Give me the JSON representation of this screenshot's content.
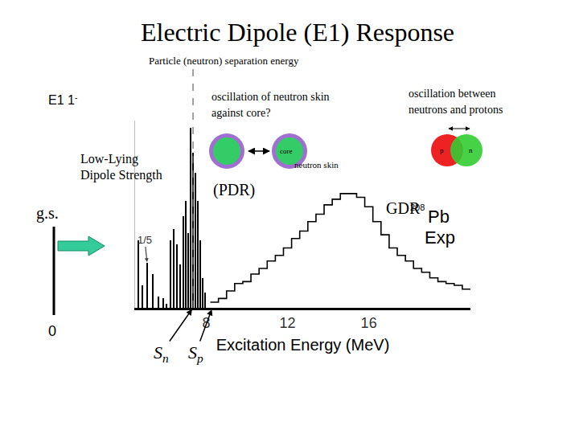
{
  "chart_data": {
    "type": "bar",
    "title": "Electric Dipole (E1) Response",
    "x_label": "Excitation Energy (MeV)",
    "xlim": [
      4.5,
      21
    ],
    "xticks": [
      8,
      12,
      16
    ],
    "ylim": [
      0,
      100
    ],
    "tick_labels": "x",
    "grid": false,
    "series": [
      {
        "type": "bar",
        "color": "#000000",
        "x": [
          4.66,
          4.86,
          5.09,
          5.37,
          5.65,
          5.89,
          6.04,
          6.24,
          6.4,
          6.56,
          6.72,
          6.87,
          6.99,
          7.11,
          7.23,
          7.35,
          7.47,
          7.59,
          7.71,
          7.82,
          7.94
        ],
        "values": [
          36,
          12,
          24,
          18,
          6,
          5,
          2,
          36,
          42,
          34,
          23,
          49,
          57,
          40,
          96,
          83,
          72,
          57,
          36,
          16,
          8
        ]
      },
      {
        "type": "line",
        "line_style": "step",
        "color": "#000000",
        "x": [
          8.2,
          8.6,
          9.0,
          9.4,
          9.8,
          10.2,
          10.6,
          11.0,
          11.4,
          11.8,
          12.2,
          12.6,
          13.0,
          13.4,
          13.8,
          14.2,
          14.6,
          15.0,
          15.4,
          15.8,
          16.2,
          16.6,
          17.0,
          17.4,
          17.8,
          18.2,
          18.6,
          19.0,
          19.4,
          19.8,
          20.2,
          20.6,
          21.0
        ],
        "values": [
          3,
          5,
          9,
          13,
          14,
          18,
          21,
          25,
          28,
          32,
          37,
          41,
          46,
          50,
          55,
          58,
          61,
          61,
          59,
          54,
          46,
          39,
          32,
          28,
          25,
          21,
          19,
          16,
          14,
          13,
          12,
          10,
          10
        ]
      }
    ],
    "separation_energies": [
      {
        "label": "S",
        "subscript": "n",
        "value": 7.35,
        "line_style": "dashed",
        "note": "Particle (neutron) separation energy"
      },
      {
        "label": "S",
        "subscript": "p",
        "value": 8.3
      }
    ],
    "annotations": [
      {
        "text": "1/5",
        "x": 5.09,
        "y": 24
      }
    ]
  },
  "slide": {
    "e1": {
      "text": "E1 1",
      "superscript": "-"
    },
    "pdr_question": [
      "oscillation of neutron skin",
      "against core?"
    ],
    "gdr_description": [
      "oscillation between",
      "neutrons and protons"
    ],
    "skin_diagram": {
      "core": "core",
      "skin": "neutron skin"
    },
    "np_diagram": {
      "proton": "p",
      "neutron": "n"
    },
    "low_lying": [
      "Low-Lying",
      "Dipole Strength"
    ],
    "pdr": "(PDR)",
    "gdr": "GDR",
    "nucleus": {
      "mass_number": "208",
      "symbol": "Pb"
    },
    "exp": "Exp",
    "ground_state": {
      "label": "g.s.",
      "energy": 0
    }
  }
}
